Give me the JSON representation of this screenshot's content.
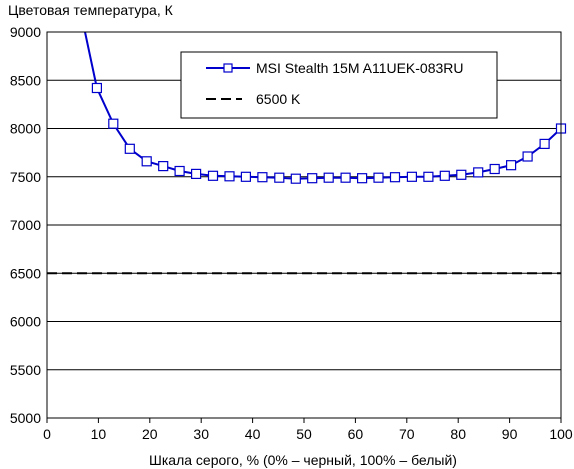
{
  "chart_data": {
    "type": "line",
    "title": "",
    "ylabel": "Цветовая температура, К",
    "xlabel": "Шкала серого, % (0% – черный, 100% – белый)",
    "xlim": [
      0,
      100
    ],
    "ylim": [
      5000,
      9000
    ],
    "x_ticks": [
      "0",
      "10",
      "20",
      "30",
      "40",
      "50",
      "60",
      "70",
      "80",
      "90",
      "100"
    ],
    "y_ticks": [
      "5000",
      "5500",
      "6000",
      "6500",
      "7000",
      "7500",
      "8000",
      "8500",
      "9000"
    ],
    "grid": "horizontal",
    "legend_position": "top-right",
    "series": [
      {
        "name": "MSI Stealth 15M A11UEK-083RU",
        "color": "#0000cc",
        "marker": "square",
        "x": [
          9.7,
          12.9,
          16.1,
          19.4,
          22.6,
          25.8,
          29.0,
          32.3,
          35.5,
          38.7,
          41.9,
          45.2,
          48.4,
          51.6,
          54.8,
          58.1,
          61.3,
          64.5,
          67.7,
          71.0,
          74.2,
          77.4,
          80.6,
          83.9,
          87.1,
          90.3,
          93.5,
          96.8,
          100.0
        ],
        "y": [
          8420,
          8050,
          7790,
          7660,
          7610,
          7560,
          7530,
          7510,
          7505,
          7500,
          7495,
          7490,
          7480,
          7485,
          7490,
          7490,
          7485,
          7490,
          7495,
          7500,
          7500,
          7510,
          7520,
          7545,
          7580,
          7620,
          7710,
          7840,
          8000
        ],
        "line_start": {
          "x": 7.4,
          "y": 9000
        }
      },
      {
        "name": "6500 K",
        "color": "#000000",
        "style": "dashed",
        "x": [
          0,
          100
        ],
        "y": [
          6500,
          6500
        ]
      }
    ]
  }
}
